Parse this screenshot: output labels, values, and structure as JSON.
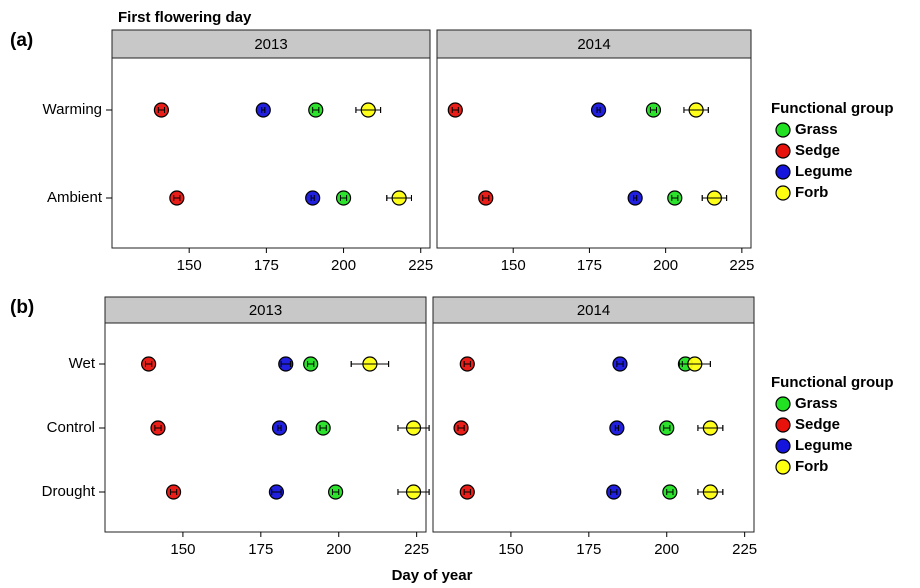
{
  "chart_data": [
    {
      "type": "dot",
      "panel": "(a)",
      "title": "First flowering day",
      "strip": "2013",
      "categories": [
        "Warming",
        "Ambient"
      ],
      "series": [
        {
          "color": "#22e022",
          "values": [
            191,
            200
          ],
          "errors": [
            1,
            1
          ]
        },
        {
          "color": "#e8120c",
          "values": [
            141,
            146
          ],
          "errors": [
            1,
            1
          ]
        },
        {
          "color": "#1414dc",
          "values": [
            174,
            190
          ],
          "errors": [
            0.5,
            0.5
          ]
        },
        {
          "color": "#ffff10",
          "values": [
            208,
            218
          ],
          "errors": [
            4,
            4
          ]
        }
      ],
      "xlim": [
        125,
        228
      ],
      "xticks": [
        150,
        175,
        200,
        225
      ]
    },
    {
      "type": "dot",
      "strip": "2014",
      "legend_title": "Functional group",
      "series": [
        {
          "name": "Grass",
          "color": "#22e022",
          "values": [
            196,
            203
          ],
          "errors": [
            1,
            1
          ]
        },
        {
          "name": "Sedge",
          "color": "#e8120c",
          "values": [
            131,
            141
          ],
          "errors": [
            1,
            1
          ]
        },
        {
          "name": "Legume",
          "color": "#1414dc",
          "values": [
            178,
            190
          ],
          "errors": [
            0.5,
            0.5
          ]
        },
        {
          "name": "Forb",
          "color": "#ffff10",
          "values": [
            210,
            216
          ],
          "errors": [
            4,
            4
          ]
        }
      ],
      "xlim": [
        125,
        228
      ],
      "xticks": [
        150,
        175,
        200,
        225
      ]
    },
    {
      "type": "dot",
      "panel": "(b)",
      "strip": "2013",
      "categories": [
        "Wet",
        "Control",
        "Drought"
      ],
      "series": [
        {
          "color": "#22e022",
          "values": [
            191,
            195,
            199
          ],
          "errors": [
            1,
            1,
            1
          ]
        },
        {
          "color": "#e8120c",
          "values": [
            139,
            142,
            147
          ],
          "errors": [
            1,
            1,
            1
          ]
        },
        {
          "color": "#1414dc",
          "values": [
            183,
            181,
            180
          ],
          "errors": [
            1.5,
            0.5,
            1.5
          ]
        },
        {
          "color": "#ffff10",
          "values": [
            210,
            224,
            224
          ],
          "errors": [
            6,
            5,
            5
          ]
        }
      ],
      "xlim": [
        125,
        228
      ],
      "xticks": [
        150,
        175,
        200,
        225
      ]
    },
    {
      "type": "dot",
      "strip": "2014",
      "legend_title": "Functional group",
      "xlabel": "Day of year",
      "series": [
        {
          "name": "Grass",
          "color": "#22e022",
          "values": [
            206,
            200,
            201
          ],
          "errors": [
            1,
            1,
            1
          ]
        },
        {
          "name": "Sedge",
          "color": "#e8120c",
          "values": [
            136,
            134,
            136
          ],
          "errors": [
            1,
            1,
            1
          ]
        },
        {
          "name": "Legume",
          "color": "#1414dc",
          "values": [
            185,
            184,
            183
          ],
          "errors": [
            1,
            0.5,
            1
          ]
        },
        {
          "name": "Forb",
          "color": "#ffff10",
          "values": [
            209,
            214,
            214
          ],
          "errors": [
            5,
            4,
            4
          ]
        }
      ],
      "xlim": [
        125,
        228
      ],
      "xticks": [
        150,
        175,
        200,
        225
      ]
    }
  ]
}
